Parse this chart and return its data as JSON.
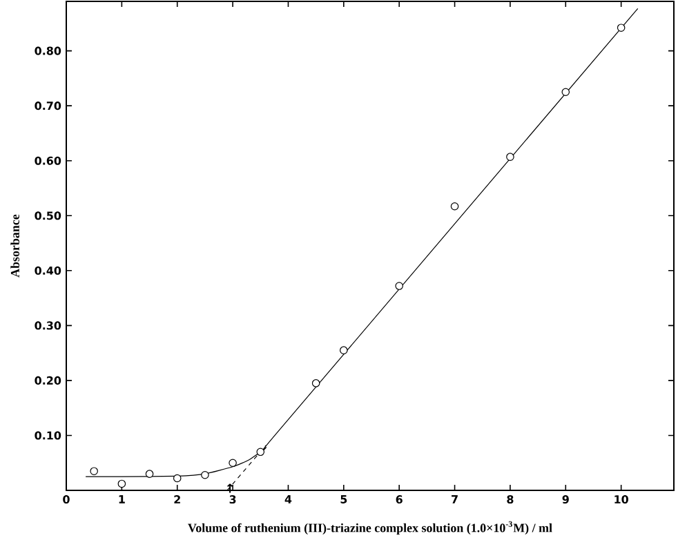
{
  "chart_data": {
    "type": "scatter",
    "xlabel": "Volume of ruthenium (III)-triazine complex solution (1.0×10$^{-3}$M) / ml",
    "ylabel": "Absorbance",
    "xlim": [
      0,
      10.95
    ],
    "ylim": [
      0,
      0.89
    ],
    "xticks": [
      0,
      1,
      2,
      3,
      4,
      5,
      6,
      7,
      8,
      9,
      10
    ],
    "yticks": [
      {
        "value": 0.1,
        "label": "0.10"
      },
      {
        "value": 0.2,
        "label": "0.20"
      },
      {
        "value": 0.3,
        "label": "0.30"
      },
      {
        "value": 0.4,
        "label": "0.40"
      },
      {
        "value": 0.5,
        "label": "0.50"
      },
      {
        "value": 0.6,
        "label": "0.60"
      },
      {
        "value": 0.7,
        "label": "0.70"
      },
      {
        "value": 0.8,
        "label": "0.80"
      }
    ],
    "grid": false,
    "annotations": [
      {
        "text": "↑",
        "x": 2.95,
        "y": 0
      }
    ],
    "series": [
      {
        "color": "#000000",
        "marker": "circle",
        "x": [
          0.5,
          1,
          1.5,
          2,
          2.5,
          3,
          3.5,
          4.5,
          5,
          6,
          7,
          8,
          9,
          10
        ],
        "values": [
          0.035,
          0.012,
          0.03,
          0.022,
          0.028,
          0.05,
          0.07,
          0.195,
          0.255,
          0.372,
          0.517,
          0.607,
          0.725,
          0.842
        ]
      },
      {
        "type": "line",
        "color": "#000000",
        "marker": "none",
        "line_style": "solid",
        "x": [
          0.35,
          1,
          2,
          2.5,
          3,
          3.3,
          3.6,
          3.8,
          10.3
        ],
        "values": [
          0.025,
          0.025,
          0.026,
          0.03,
          0.043,
          0.056,
          0.078,
          0.105,
          0.877
        ]
      },
      {
        "type": "line",
        "color": "#000000",
        "marker": "none",
        "line_style": "dashed",
        "x": [
          2.9,
          3.6
        ],
        "values": [
          0,
          0.082
        ]
      }
    ]
  }
}
